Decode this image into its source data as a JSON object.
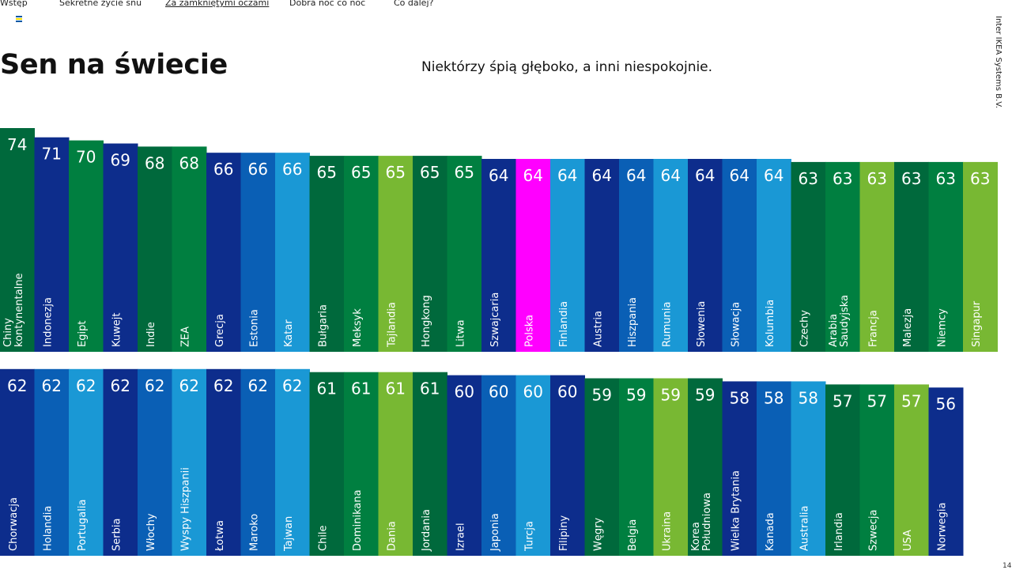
{
  "nav": {
    "items": [
      {
        "label": "Wstęp",
        "active": false
      },
      {
        "label": "Sekretne życie snu",
        "active": false
      },
      {
        "label": "Za zamkniętymi oczami",
        "active": true
      },
      {
        "label": "Dobra noc co noc",
        "active": false
      },
      {
        "label": "Co dalej?",
        "active": false
      }
    ]
  },
  "header": {
    "title": "Sen na świecie",
    "subtitle": "Niektórzy śpią głęboko, a inni niespokojnie."
  },
  "side_label": "Inter IKEA Systems B.V.",
  "page_number": "14",
  "chart_data": {
    "type": "bar",
    "ylim": [
      0,
      74
    ],
    "legend": "none",
    "grid": false,
    "highlight_color": "#ff00ff",
    "colors": {
      "blue_dark": "#0d2d8c",
      "blue": "#0a4da8",
      "blue_mid": "#0a5fb5",
      "blue_light": "#1a98d5",
      "green_dark": "#00693c",
      "green": "#007f40",
      "green_light": "#78b833",
      "magenta": "#ff00ff"
    },
    "rows": [
      {
        "categories": [
          "Chiny kontynentalne",
          "Indonezja",
          "Egipt",
          "Kuwejt",
          "Indie",
          "ZEA",
          "Grecja",
          "Estonia",
          "Katar",
          "Bułgaria",
          "Meksyk",
          "Tajlandia",
          "Hongkong",
          "Litwa",
          "Szwajcaria",
          "Polska",
          "Finlandia",
          "Austria",
          "Hiszpania",
          "Rumunia",
          "Słowenia",
          "Słowacja",
          "Kolumbia",
          "Czechy",
          "Arabia Saudyjska",
          "Francja",
          "Malezja",
          "Niemcy",
          "Singapur"
        ],
        "values": [
          74,
          71,
          70,
          69,
          68,
          68,
          66,
          66,
          66,
          65,
          65,
          65,
          65,
          65,
          64,
          64,
          64,
          64,
          64,
          64,
          64,
          64,
          64,
          63,
          63,
          63,
          63,
          63,
          63
        ],
        "colors": [
          "green_dark",
          "blue_dark",
          "green",
          "blue_dark",
          "green_dark",
          "green",
          "blue_dark",
          "blue_mid",
          "blue_light",
          "green_dark",
          "green",
          "green_light",
          "green_dark",
          "green",
          "blue_dark",
          "magenta",
          "blue_light",
          "blue_dark",
          "blue_mid",
          "blue_light",
          "blue_dark",
          "blue_mid",
          "blue_light",
          "green_dark",
          "green",
          "green_light",
          "green_dark",
          "green",
          "green_light"
        ]
      },
      {
        "categories": [
          "Chorwacja",
          "Holandia",
          "Portugalia",
          "Serbia",
          "Włochy",
          "Wyspy Hiszpanii",
          "Łotwa",
          "Maroko",
          "Tajwan",
          "Chile",
          "Dominikana",
          "Dania",
          "Jordania",
          "Izrael",
          "Japonia",
          "Turcja",
          "Filipiny",
          "Węgry",
          "Belgia",
          "Ukraina",
          "Korea Południowa",
          "Wielka Brytania",
          "Kanada",
          "Australia",
          "Irlandia",
          "Szwecja",
          "USA",
          "Norwegia"
        ],
        "values": [
          62,
          62,
          62,
          62,
          62,
          62,
          62,
          62,
          62,
          61,
          61,
          61,
          61,
          60,
          60,
          60,
          60,
          59,
          59,
          59,
          59,
          58,
          58,
          58,
          57,
          57,
          57,
          56
        ],
        "colors": [
          "blue_dark",
          "blue_mid",
          "blue_light",
          "blue_dark",
          "blue_mid",
          "blue_light",
          "blue_dark",
          "blue_mid",
          "blue_light",
          "green_dark",
          "green",
          "green_light",
          "green_dark",
          "blue_dark",
          "blue_mid",
          "blue_light",
          "blue_dark",
          "green_dark",
          "green",
          "green_light",
          "green_dark",
          "blue_dark",
          "blue_mid",
          "blue_light",
          "green_dark",
          "green",
          "green_light",
          "blue_dark"
        ]
      }
    ]
  }
}
